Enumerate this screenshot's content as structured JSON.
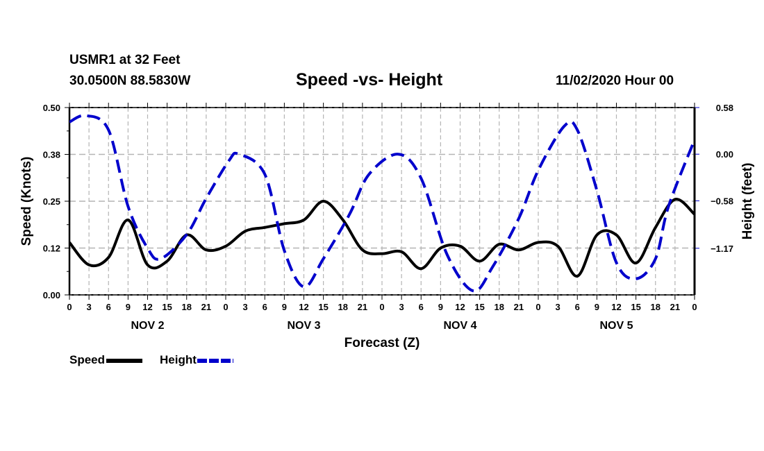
{
  "header": {
    "station": "USMR1 at 32 Feet",
    "coordinates": "30.0500N 88.5830W",
    "title": "Speed -vs- Height",
    "datetime": "11/02/2020 Hour 00"
  },
  "legend": {
    "items": [
      {
        "label": "Speed",
        "color": "#000000",
        "style": "solid"
      },
      {
        "label": "Height",
        "color": "#0000cc",
        "style": "dashed"
      }
    ]
  },
  "chart_data": {
    "type": "line",
    "title": "Speed -vs- Height",
    "xlabel": "Forecast (Z)",
    "ylabel": "Speed (Knots)",
    "y2label": "Height (feet)",
    "x_range_hours": [
      0,
      96
    ],
    "x_tick_labels": [
      "0",
      "3",
      "6",
      "9",
      "12",
      "15",
      "18",
      "21",
      "0",
      "3",
      "6",
      "9",
      "12",
      "15",
      "18",
      "21",
      "0",
      "3",
      "6",
      "9",
      "12",
      "15",
      "18",
      "21",
      "0",
      "3",
      "6",
      "9",
      "12",
      "15",
      "18",
      "21",
      "0"
    ],
    "day_labels": [
      {
        "label": "NOV 2",
        "center_hour": 12
      },
      {
        "label": "NOV 3",
        "center_hour": 36
      },
      {
        "label": "NOV 4",
        "center_hour": 60
      },
      {
        "label": "NOV 5",
        "center_hour": 84
      }
    ],
    "ylim": [
      0,
      0.5
    ],
    "y_ticks": [
      {
        "value": 0.0,
        "label": "0.00"
      },
      {
        "value": 0.125,
        "label": "0.12"
      },
      {
        "value": 0.25,
        "label": "0.25"
      },
      {
        "value": 0.375,
        "label": "0.38"
      },
      {
        "value": 0.5,
        "label": "0.50"
      }
    ],
    "y2lim": [
      -1.75,
      0.58
    ],
    "y2_ticks": [
      {
        "value": 0.58,
        "label": "0.58"
      },
      {
        "value": 0.0,
        "label": "0.00"
      },
      {
        "value": -0.58,
        "label": "−0.58"
      },
      {
        "value": -1.17,
        "label": "−1.17"
      }
    ],
    "grid": true,
    "legend_position": "bottom-left",
    "series": [
      {
        "name": "Speed",
        "axis": "left",
        "color": "#000000",
        "style": "solid",
        "x": [
          0,
          3,
          6,
          9,
          12,
          15,
          18,
          21,
          24,
          27,
          30,
          33,
          36,
          39,
          42,
          45,
          48,
          51,
          54,
          57,
          60,
          63,
          66,
          69,
          72,
          75,
          78,
          81,
          84,
          87,
          90,
          93,
          96
        ],
        "values": [
          0.14,
          0.08,
          0.1,
          0.2,
          0.08,
          0.09,
          0.16,
          0.12,
          0.13,
          0.17,
          0.18,
          0.19,
          0.2,
          0.25,
          0.2,
          0.12,
          0.11,
          0.115,
          0.07,
          0.125,
          0.13,
          0.09,
          0.135,
          0.12,
          0.14,
          0.13,
          0.05,
          0.16,
          0.16,
          0.085,
          0.18,
          0.255,
          0.215
        ]
      },
      {
        "name": "Height",
        "axis": "right",
        "color": "#0000cc",
        "style": "dashed",
        "x": [
          0,
          2.5,
          6,
          9,
          12,
          14,
          18,
          21,
          24.5,
          26,
          30,
          33,
          36,
          39,
          43,
          46,
          50.5,
          54,
          58,
          62,
          65,
          69,
          72,
          76,
          78,
          81,
          84,
          87,
          90,
          92,
          96
        ],
        "values": [
          0.4,
          0.48,
          0.3,
          -0.65,
          -1.17,
          -1.3,
          -1.0,
          -0.55,
          -0.08,
          0.0,
          -0.25,
          -1.2,
          -1.65,
          -1.3,
          -0.75,
          -0.25,
          0.0,
          -0.3,
          -1.25,
          -1.7,
          -1.4,
          -0.8,
          -0.2,
          0.35,
          0.3,
          -0.45,
          -1.35,
          -1.55,
          -1.3,
          -0.65,
          0.18
        ]
      }
    ]
  }
}
